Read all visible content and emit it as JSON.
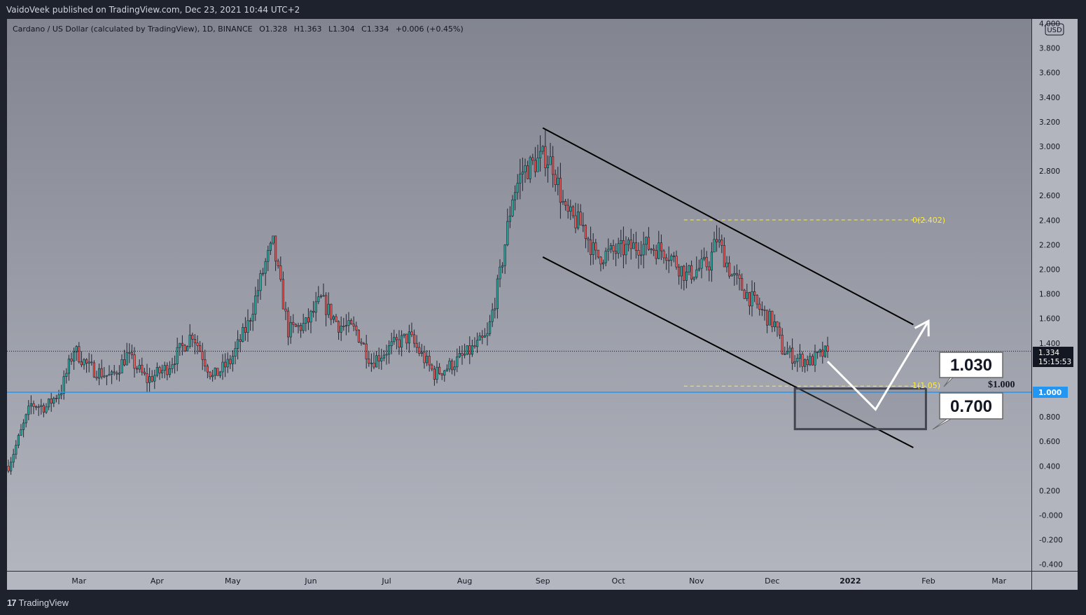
{
  "header": {
    "published": "VaidoVeek published on TradingView.com, Dec 23, 2021 10:44 UTC+2"
  },
  "footer": {
    "brand": "TradingView",
    "brand_icon": "tradingview-logo-icon"
  },
  "legend": {
    "symbol": "Cardano / US Dollar (calculated by TradingView), 1D, BINANCE",
    "open": "O1.328",
    "high": "H1.363",
    "low": "L1.304",
    "close": "C1.334",
    "change": "+0.006 (+0.45%)"
  },
  "price_axis": {
    "currency": "USD",
    "ticks": [
      "4.000",
      "3.800",
      "3.600",
      "3.400",
      "3.200",
      "3.000",
      "2.800",
      "2.600",
      "2.400",
      "2.200",
      "2.000",
      "1.800",
      "1.600",
      "1.400",
      "1.200",
      "1.000",
      "0.800",
      "0.600",
      "0.400",
      "0.200",
      "-0.000",
      "-0.200",
      "-0.400"
    ],
    "last_price": "1.334",
    "countdown": "15:15:53",
    "horizontal_level": "1.000"
  },
  "time_axis": {
    "ticks": [
      "Mar",
      "Apr",
      "May",
      "Jun",
      "Jul",
      "Aug",
      "Sep",
      "Oct",
      "Nov",
      "Dec",
      "2022",
      "Feb",
      "Mar"
    ]
  },
  "annotations": {
    "fib_top": "0(2.402)",
    "fib_bottom": "1(1.05)",
    "dollar_label": "$1.000",
    "callout_top": "1.030",
    "callout_bottom": "0.700"
  },
  "colors": {
    "candle_up": "#26a69a",
    "candle_down": "#ef5350",
    "fib_line": "#ffeb3b",
    "support_line": "#2196f3",
    "channel": "#000000",
    "projection_arrow": "#ffffff"
  },
  "chart_data": {
    "type": "candlestick",
    "pair": "ADA/USD",
    "x_range": [
      "2021-02-01",
      "2022-03-15"
    ],
    "ylim": [
      -0.4,
      4.0
    ],
    "anchors": [
      [
        "2021-02-01",
        0.4
      ],
      [
        "2021-02-05",
        0.62
      ],
      [
        "2021-02-10",
        0.9
      ],
      [
        "2021-02-16",
        0.88
      ],
      [
        "2021-02-22",
        1.02
      ],
      [
        "2021-02-27",
        1.35
      ],
      [
        "2021-03-05",
        1.2
      ],
      [
        "2021-03-14",
        1.12
      ],
      [
        "2021-03-20",
        1.3
      ],
      [
        "2021-03-28",
        1.1
      ],
      [
        "2021-04-05",
        1.2
      ],
      [
        "2021-04-15",
        1.48
      ],
      [
        "2021-04-23",
        1.12
      ],
      [
        "2021-04-30",
        1.25
      ],
      [
        "2021-05-07",
        1.55
      ],
      [
        "2021-05-14",
        2.05
      ],
      [
        "2021-05-17",
        2.2
      ],
      [
        "2021-05-23",
        1.5
      ],
      [
        "2021-05-30",
        1.55
      ],
      [
        "2021-06-05",
        1.75
      ],
      [
        "2021-06-12",
        1.55
      ],
      [
        "2021-06-19",
        1.5
      ],
      [
        "2021-06-25",
        1.25
      ],
      [
        "2021-07-05",
        1.4
      ],
      [
        "2021-07-10",
        1.45
      ],
      [
        "2021-07-20",
        1.15
      ],
      [
        "2021-07-25",
        1.2
      ],
      [
        "2021-08-01",
        1.3
      ],
      [
        "2021-08-10",
        1.45
      ],
      [
        "2021-08-15",
        1.95
      ],
      [
        "2021-08-20",
        2.6
      ],
      [
        "2021-08-24",
        2.8
      ],
      [
        "2021-09-02",
        2.92
      ],
      [
        "2021-09-05",
        2.85
      ],
      [
        "2021-09-10",
        2.45
      ],
      [
        "2021-09-17",
        2.35
      ],
      [
        "2021-09-22",
        2.1
      ],
      [
        "2021-10-01",
        2.15
      ],
      [
        "2021-10-10",
        2.2
      ],
      [
        "2021-10-20",
        2.15
      ],
      [
        "2021-10-28",
        1.95
      ],
      [
        "2021-11-06",
        2.05
      ],
      [
        "2021-11-09",
        2.25
      ],
      [
        "2021-11-15",
        1.95
      ],
      [
        "2021-11-25",
        1.7
      ],
      [
        "2021-12-02",
        1.55
      ],
      [
        "2021-12-05",
        1.35
      ],
      [
        "2021-12-10",
        1.28
      ],
      [
        "2021-12-16",
        1.25
      ],
      [
        "2021-12-22",
        1.32
      ]
    ],
    "channel_upper": [
      [
        "2021-09-01",
        3.15
      ],
      [
        "2022-01-26",
        1.55
      ]
    ],
    "channel_lower": [
      [
        "2021-09-01",
        2.1
      ],
      [
        "2022-01-26",
        0.55
      ]
    ],
    "fib_levels": [
      {
        "label": "0",
        "value": 2.402
      },
      {
        "label": "1",
        "value": 1.05
      }
    ],
    "fib_span": [
      "2021-10-27",
      "2022-01-31"
    ],
    "support_level": 1.0,
    "target_zone": {
      "x": [
        "2021-12-10",
        "2022-01-31"
      ],
      "y": [
        0.7,
        1.03
      ]
    },
    "projection": [
      [
        "2021-12-23",
        1.25
      ],
      [
        "2022-01-11",
        0.86
      ],
      [
        "2022-02-01",
        1.58
      ]
    ]
  }
}
